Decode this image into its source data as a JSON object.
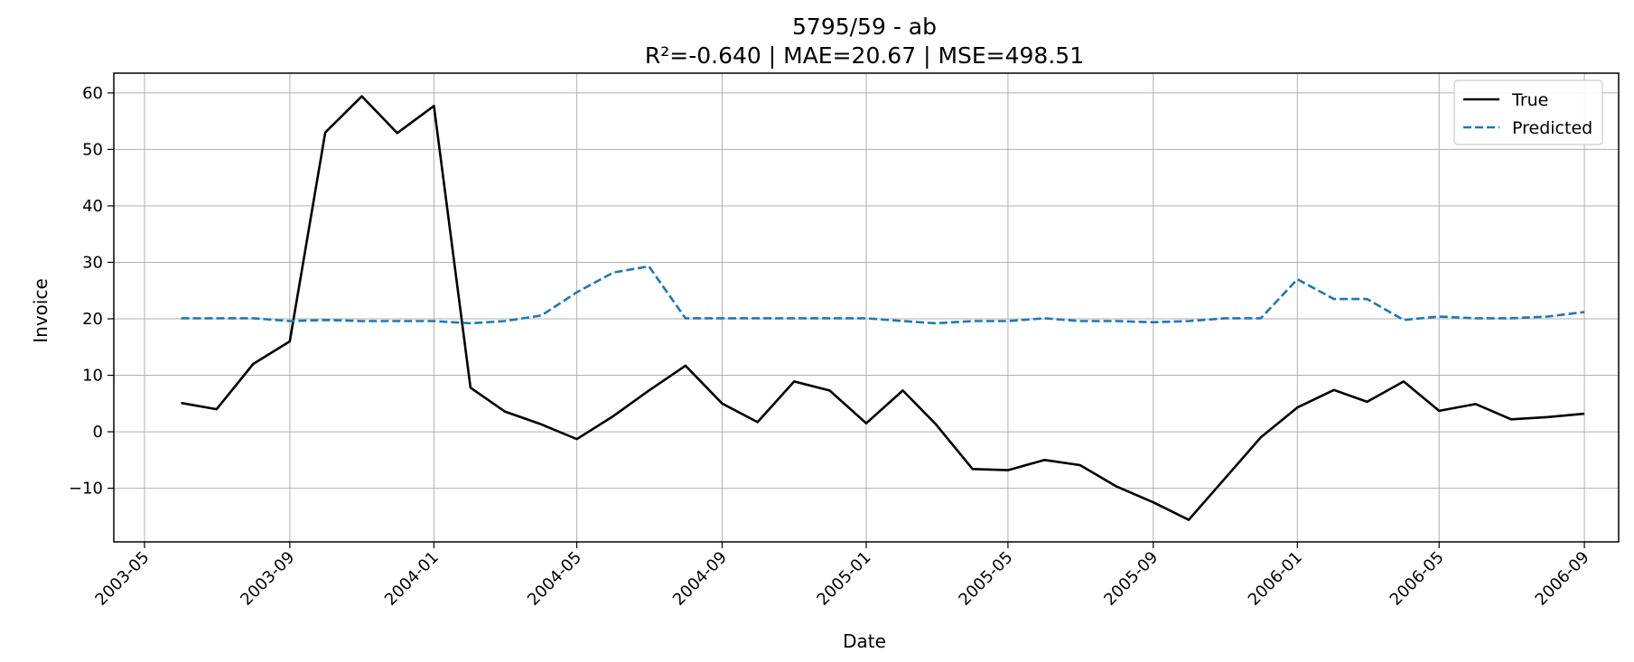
{
  "chart_data": {
    "type": "line",
    "title": "5795/59 - ab",
    "subtitle": "R²=-0.640 | MAE=20.67 | MSE=498.51",
    "xlabel": "Date",
    "ylabel": "Invoice",
    "x": [
      "2003-06",
      "2003-07",
      "2003-08",
      "2003-09",
      "2003-10",
      "2003-11",
      "2003-12",
      "2004-01",
      "2004-02",
      "2004-03",
      "2004-04",
      "2004-05",
      "2004-06",
      "2004-07",
      "2004-08",
      "2004-09",
      "2004-10",
      "2004-11",
      "2004-12",
      "2005-01",
      "2005-02",
      "2005-03",
      "2005-04",
      "2005-05",
      "2005-06",
      "2005-07",
      "2005-08",
      "2005-09",
      "2005-10",
      "2005-11",
      "2005-12",
      "2006-01",
      "2006-02",
      "2006-03",
      "2006-04",
      "2006-05",
      "2006-06",
      "2006-07",
      "2006-08",
      "2006-09"
    ],
    "series": [
      {
        "name": "True",
        "color": "#000000",
        "dash": "solid",
        "values": [
          5.1,
          4.0,
          12.0,
          16.0,
          53.0,
          59.4,
          52.9,
          57.7,
          7.8,
          3.6,
          1.3,
          -1.3,
          2.8,
          7.3,
          11.7,
          5.0,
          1.7,
          8.9,
          7.3,
          1.5,
          7.3,
          1.3,
          -6.6,
          -6.8,
          -5.0,
          -5.9,
          -9.7,
          -12.5,
          -15.6,
          -8.2,
          -1.0,
          4.3,
          7.4,
          5.3,
          8.9,
          3.7,
          4.9,
          2.2,
          2.6,
          3.2
        ]
      },
      {
        "name": "Predicted",
        "color": "#1f77b4",
        "dash": "dashed",
        "values": [
          20.1,
          20.1,
          20.1,
          19.6,
          19.8,
          19.6,
          19.6,
          19.6,
          19.2,
          19.6,
          20.6,
          24.7,
          28.2,
          29.3,
          20.1,
          20.1,
          20.1,
          20.1,
          20.1,
          20.1,
          19.6,
          19.2,
          19.6,
          19.6,
          20.1,
          19.6,
          19.6,
          19.4,
          19.6,
          20.1,
          20.1,
          27.0,
          23.5,
          23.5,
          19.8,
          20.4,
          20.1,
          20.1,
          20.4,
          21.2
        ]
      }
    ],
    "xticks": [
      "2003-05",
      "2003-09",
      "2004-01",
      "2004-05",
      "2004-09",
      "2005-01",
      "2005-05",
      "2005-09",
      "2006-01",
      "2006-05",
      "2006-09"
    ],
    "yticks": [
      60,
      50,
      40,
      30,
      20,
      10,
      0,
      -10
    ],
    "ytick_labels": [
      "60",
      "50",
      "40",
      "30",
      "20",
      "10",
      "0",
      "−10"
    ],
    "xlim": [
      "2003-04-05",
      "2006-09-30"
    ],
    "ylim": [
      -19.5,
      63.5
    ],
    "grid": true,
    "legend_position": "top-right"
  }
}
